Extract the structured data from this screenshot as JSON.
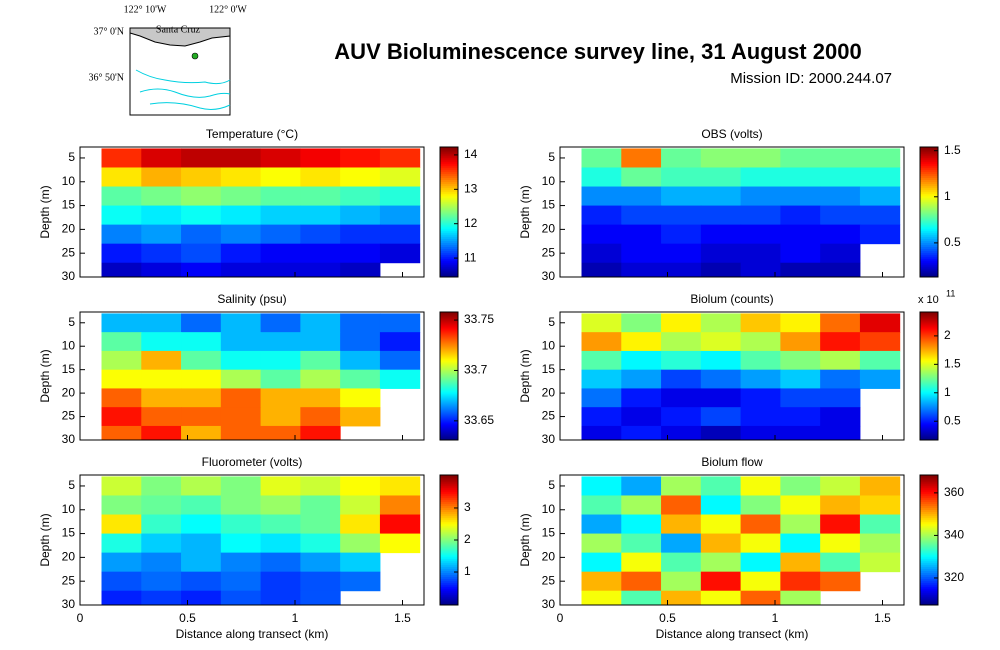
{
  "header": {
    "title": "AUV Bioluminescence survey line, 31 August 2000",
    "mission": "Mission ID: 2000.244.07"
  },
  "map": {
    "lon_labels": [
      "122° 10'W",
      "122° 0'W"
    ],
    "lat_labels": [
      "37° 0'N",
      "36° 50'N"
    ],
    "place": "Santa Cruz"
  },
  "chart_data": [
    {
      "type": "heatmap",
      "title": "Temperature (°C)",
      "y_label": "Depth (m)",
      "colormap": "jet",
      "xlim": [
        0,
        1.6
      ],
      "xticks": [
        0,
        0.5,
        1,
        1.5
      ],
      "ylim": [
        2.7,
        30
      ],
      "yticks": [
        5,
        10,
        15,
        20,
        25,
        30
      ],
      "xbins": [
        0.1,
        0.285,
        0.47,
        0.655,
        0.84,
        1.025,
        1.21,
        1.395,
        1.58
      ],
      "ybins": [
        3,
        7,
        11,
        15,
        19,
        23,
        27,
        30
      ],
      "clim": [
        10.45,
        14.23
      ],
      "cticks": [
        11,
        12,
        13,
        14
      ],
      "z": [
        [
          13.6,
          13.9,
          14.0,
          14.0,
          13.9,
          13.8,
          13.7,
          13.6
        ],
        [
          12.9,
          13.1,
          13.0,
          12.9,
          12.8,
          12.9,
          12.8,
          12.7
        ],
        [
          12.2,
          12.3,
          12.4,
          12.3,
          12.2,
          12.2,
          12.1,
          12.0
        ],
        [
          11.9,
          11.8,
          11.9,
          11.8,
          11.7,
          11.7,
          11.6,
          11.5
        ],
        [
          11.4,
          11.5,
          11.3,
          11.4,
          11.3,
          11.2,
          11.1,
          11.1
        ],
        [
          11.0,
          11.1,
          11.2,
          11.0,
          10.9,
          10.9,
          10.9,
          10.8
        ],
        [
          10.7,
          10.8,
          10.9,
          10.8,
          10.8,
          10.8,
          10.7,
          null
        ]
      ]
    },
    {
      "type": "heatmap",
      "title": "OBS (volts)",
      "y_label": "Depth (m)",
      "colormap": "jet",
      "xlim": [
        0,
        1.6
      ],
      "xticks": [
        0,
        0.5,
        1,
        1.5
      ],
      "ylim": [
        2.7,
        30
      ],
      "yticks": [
        5,
        10,
        15,
        20,
        25,
        30
      ],
      "xbins": [
        0.1,
        0.285,
        0.47,
        0.655,
        0.84,
        1.025,
        1.21,
        1.395,
        1.58
      ],
      "ybins": [
        3,
        7,
        11,
        15,
        19,
        23,
        27,
        30
      ],
      "clim": [
        0.13,
        1.54
      ],
      "cticks": [
        0.5,
        1,
        1.5
      ],
      "z": [
        [
          0.8,
          1.2,
          0.8,
          0.85,
          0.85,
          0.8,
          0.8,
          0.8
        ],
        [
          0.7,
          0.8,
          0.75,
          0.75,
          0.7,
          0.7,
          0.7,
          0.7
        ],
        [
          0.5,
          0.5,
          0.55,
          0.55,
          0.5,
          0.5,
          0.5,
          0.55
        ],
        [
          0.35,
          0.4,
          0.4,
          0.4,
          0.4,
          0.35,
          0.4,
          0.4
        ],
        [
          0.3,
          0.3,
          0.35,
          0.3,
          0.3,
          0.3,
          0.3,
          0.35
        ],
        [
          0.25,
          0.3,
          0.3,
          0.25,
          0.25,
          0.3,
          0.25,
          null
        ],
        [
          0.2,
          0.25,
          0.25,
          0.2,
          0.25,
          0.2,
          0.2,
          null
        ]
      ]
    },
    {
      "type": "heatmap",
      "title": "Salinity (psu)",
      "y_label": "Depth (m)",
      "colormap": "jet",
      "xlim": [
        0,
        1.6
      ],
      "xticks": [
        0,
        0.5,
        1,
        1.5
      ],
      "ylim": [
        2.7,
        30
      ],
      "yticks": [
        5,
        10,
        15,
        20,
        25,
        30
      ],
      "xbins": [
        0.1,
        0.285,
        0.47,
        0.655,
        0.84,
        1.025,
        1.21,
        1.395,
        1.58
      ],
      "ybins": [
        3,
        7,
        11,
        15,
        19,
        23,
        27,
        30
      ],
      "clim": [
        33.631,
        33.758
      ],
      "cticks": [
        33.65,
        33.7,
        33.75
      ],
      "z": [
        [
          33.67,
          33.67,
          33.66,
          33.67,
          33.66,
          33.67,
          33.66,
          33.66
        ],
        [
          33.69,
          33.68,
          33.68,
          33.67,
          33.67,
          33.67,
          33.66,
          33.65
        ],
        [
          33.7,
          33.72,
          33.69,
          33.68,
          33.68,
          33.69,
          33.67,
          33.66
        ],
        [
          33.71,
          33.71,
          33.71,
          33.7,
          33.69,
          33.7,
          33.69,
          33.68
        ],
        [
          33.73,
          33.72,
          33.72,
          33.73,
          33.72,
          33.72,
          33.71,
          null
        ],
        [
          33.74,
          33.73,
          33.73,
          33.73,
          33.72,
          33.73,
          33.72,
          null
        ],
        [
          33.73,
          33.74,
          33.72,
          33.73,
          33.73,
          33.74,
          null,
          null
        ]
      ]
    },
    {
      "type": "heatmap",
      "title": "Biolum (counts)",
      "y_label": "Depth (m)",
      "colormap": "jet",
      "scale_base": "x 10",
      "scale_exponent": "11",
      "xlim": [
        0,
        1.6
      ],
      "xticks": [
        0,
        0.5,
        1,
        1.5
      ],
      "ylim": [
        2.7,
        30
      ],
      "yticks": [
        5,
        10,
        15,
        20,
        25,
        30
      ],
      "xbins": [
        0.1,
        0.285,
        0.47,
        0.655,
        0.84,
        1.025,
        1.21,
        1.395,
        1.58
      ],
      "ybins": [
        3,
        7,
        11,
        15,
        19,
        23,
        27,
        30
      ],
      "clim": [
        0.17,
        2.42
      ],
      "cticks": [
        0.5,
        1,
        1.5,
        2
      ],
      "z": [
        [
          1.5,
          1.3,
          1.6,
          1.4,
          1.7,
          1.6,
          1.9,
          2.2
        ],
        [
          1.8,
          1.6,
          1.4,
          1.5,
          1.4,
          1.8,
          2.1,
          2.0
        ],
        [
          1.2,
          1.0,
          1.1,
          1.0,
          1.2,
          1.3,
          1.4,
          1.2
        ],
        [
          0.9,
          0.8,
          0.6,
          0.7,
          0.8,
          0.9,
          0.7,
          0.8
        ],
        [
          0.7,
          0.5,
          0.4,
          0.4,
          0.5,
          0.6,
          0.6,
          null
        ],
        [
          0.5,
          0.4,
          0.5,
          0.6,
          0.5,
          0.5,
          0.4,
          null
        ],
        [
          0.4,
          0.5,
          0.4,
          0.3,
          0.4,
          0.4,
          0.4,
          null
        ]
      ]
    },
    {
      "type": "heatmap",
      "title": "Fluorometer (volts)",
      "y_label": "Depth (m)",
      "x_label": "Distance along transect (km)",
      "colormap": "jet",
      "xlim": [
        0,
        1.6
      ],
      "xticks": [
        0,
        0.5,
        1,
        1.5
      ],
      "ylim": [
        2.7,
        30
      ],
      "yticks": [
        5,
        10,
        15,
        20,
        25,
        30
      ],
      "xbins": [
        0.1,
        0.285,
        0.47,
        0.655,
        0.84,
        1.025,
        1.21,
        1.395,
        1.58
      ],
      "ybins": [
        3,
        7,
        11,
        15,
        19,
        23,
        27,
        30
      ],
      "clim": [
        -0.03,
        4.03
      ],
      "cticks": [
        1,
        2,
        3
      ],
      "z": [
        [
          2.3,
          2.0,
          2.2,
          2.0,
          2.4,
          2.3,
          2.5,
          2.6
        ],
        [
          2.0,
          1.9,
          1.8,
          2.0,
          2.1,
          1.9,
          2.3,
          3.0
        ],
        [
          2.6,
          1.7,
          1.5,
          1.7,
          1.8,
          1.9,
          2.6,
          3.5
        ],
        [
          1.6,
          1.3,
          1.2,
          1.5,
          1.4,
          1.6,
          2.1,
          2.5
        ],
        [
          1.1,
          1.0,
          1.2,
          1.0,
          0.9,
          1.1,
          1.3,
          null
        ],
        [
          0.8,
          0.9,
          0.8,
          0.9,
          0.7,
          0.8,
          0.9,
          null
        ],
        [
          0.6,
          0.7,
          0.6,
          0.8,
          0.7,
          0.8,
          null,
          null
        ]
      ]
    },
    {
      "type": "heatmap",
      "title": "Biolum flow",
      "y_label": "Depth (m)",
      "x_label": "Distance along transect (km)",
      "colormap": "jet",
      "xlim": [
        0,
        1.6
      ],
      "xticks": [
        0,
        0.5,
        1,
        1.5
      ],
      "ylim": [
        2.7,
        30
      ],
      "yticks": [
        5,
        10,
        15,
        20,
        25,
        30
      ],
      "xbins": [
        0.1,
        0.285,
        0.47,
        0.655,
        0.84,
        1.025,
        1.21,
        1.395,
        1.58
      ],
      "ybins": [
        3,
        7,
        11,
        15,
        19,
        23,
        27,
        30
      ],
      "clim": [
        307.3,
        368.4
      ],
      "cticks": [
        320,
        340,
        360
      ],
      "z": [
        [
          330,
          325,
          340,
          335,
          345,
          338,
          342,
          350
        ],
        [
          335,
          340,
          355,
          330,
          338,
          345,
          350,
          348
        ],
        [
          325,
          330,
          350,
          345,
          355,
          340,
          360,
          335
        ],
        [
          340,
          335,
          325,
          350,
          345,
          330,
          345,
          340
        ],
        [
          330,
          345,
          335,
          340,
          330,
          350,
          335,
          342
        ],
        [
          350,
          355,
          340,
          360,
          345,
          358,
          355,
          null
        ],
        [
          345,
          335,
          350,
          345,
          355,
          340,
          null,
          null
        ]
      ]
    }
  ]
}
